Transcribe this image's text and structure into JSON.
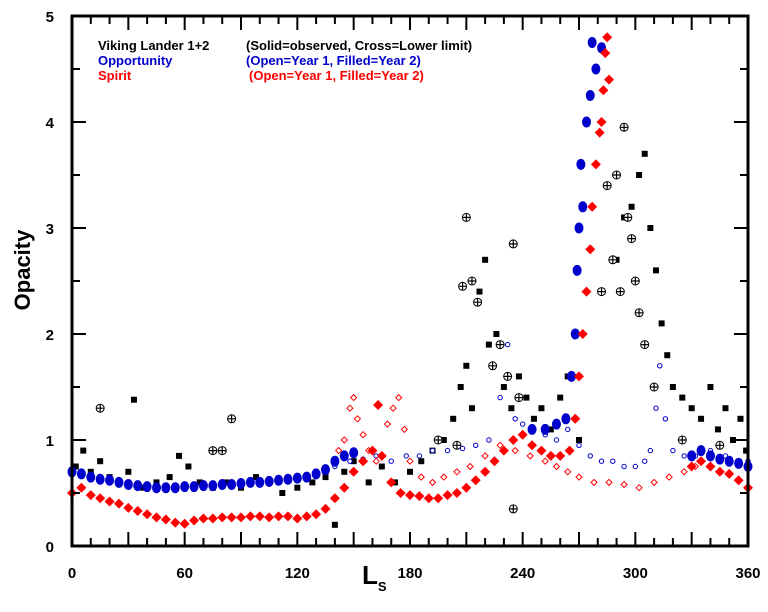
{
  "chart_data": {
    "type": "scatter",
    "xlabel": "L",
    "xlabel_sub": "S",
    "ylabel": "Opacity",
    "xlim": [
      0,
      360
    ],
    "ylim": [
      0,
      5
    ],
    "xticks": [
      0,
      60,
      120,
      180,
      240,
      300,
      360
    ],
    "yticks": [
      0,
      1,
      2,
      3,
      4,
      5
    ],
    "grid": false,
    "legend_placement": "top-left",
    "legend": [
      {
        "name": "Viking Lander 1+2",
        "note": "(Solid=observed, Cross=Lower limit)",
        "color": "#000000"
      },
      {
        "name": "Opportunity",
        "note": "(Open=Year 1, Filled=Year 2)",
        "color": "#0000cc"
      },
      {
        "name": "Spirit",
        "note": "(Open=Year 1, Filled=Year 2)",
        "color": "#ff0000"
      }
    ],
    "series": [
      {
        "id": "viking_observed",
        "marker": "square-filled",
        "color": "#000000",
        "points": [
          [
            2,
            0.75
          ],
          [
            6,
            0.9
          ],
          [
            10,
            0.7
          ],
          [
            15,
            0.8
          ],
          [
            20,
            0.65
          ],
          [
            25,
            0.6
          ],
          [
            30,
            0.7
          ],
          [
            33,
            1.38
          ],
          [
            38,
            0.55
          ],
          [
            45,
            0.6
          ],
          [
            52,
            0.65
          ],
          [
            57,
            0.85
          ],
          [
            62,
            0.75
          ],
          [
            68,
            0.6
          ],
          [
            75,
            0.55
          ],
          [
            82,
            0.6
          ],
          [
            90,
            0.55
          ],
          [
            98,
            0.65
          ],
          [
            105,
            0.6
          ],
          [
            112,
            0.5
          ],
          [
            120,
            0.55
          ],
          [
            128,
            0.6
          ],
          [
            135,
            0.65
          ],
          [
            140,
            0.2
          ],
          [
            145,
            0.7
          ],
          [
            150,
            0.8
          ],
          [
            158,
            0.6
          ],
          [
            165,
            0.75
          ],
          [
            172,
            0.6
          ],
          [
            180,
            0.7
          ],
          [
            186,
            0.8
          ],
          [
            192,
            0.9
          ],
          [
            198,
            1.0
          ],
          [
            203,
            1.2
          ],
          [
            207,
            1.5
          ],
          [
            210,
            1.7
          ],
          [
            213,
            1.3
          ],
          [
            217,
            2.4
          ],
          [
            220,
            2.7
          ],
          [
            222,
            1.9
          ],
          [
            226,
            2.0
          ],
          [
            230,
            1.5
          ],
          [
            234,
            1.3
          ],
          [
            238,
            1.6
          ],
          [
            242,
            1.4
          ],
          [
            246,
            1.2
          ],
          [
            250,
            1.3
          ],
          [
            255,
            1.1
          ],
          [
            260,
            1.4
          ],
          [
            264,
            1.6
          ],
          [
            270,
            1.0
          ],
          [
            290,
            2.7
          ],
          [
            294,
            3.1
          ],
          [
            298,
            3.2
          ],
          [
            302,
            3.5
          ],
          [
            305,
            3.7
          ],
          [
            308,
            3.0
          ],
          [
            311,
            2.6
          ],
          [
            314,
            2.1
          ],
          [
            317,
            1.8
          ],
          [
            320,
            1.5
          ],
          [
            325,
            1.4
          ],
          [
            330,
            1.3
          ],
          [
            335,
            1.2
          ],
          [
            340,
            1.5
          ],
          [
            344,
            1.1
          ],
          [
            348,
            1.3
          ],
          [
            352,
            1.0
          ],
          [
            356,
            1.2
          ],
          [
            359,
            0.9
          ]
        ]
      },
      {
        "id": "viking_lower_limit",
        "marker": "cross-open",
        "color": "#000000",
        "points": [
          [
            15,
            1.3
          ],
          [
            75,
            0.9
          ],
          [
            80,
            0.9
          ],
          [
            85,
            1.2
          ],
          [
            195,
            1.0
          ],
          [
            205,
            0.95
          ],
          [
            208,
            2.45
          ],
          [
            210,
            3.1
          ],
          [
            213,
            2.5
          ],
          [
            216,
            2.3
          ],
          [
            224,
            1.7
          ],
          [
            228,
            1.9
          ],
          [
            232,
            1.6
          ],
          [
            235,
            2.85
          ],
          [
            238,
            1.4
          ],
          [
            235,
            0.35
          ],
          [
            282,
            2.4
          ],
          [
            285,
            3.4
          ],
          [
            288,
            2.7
          ],
          [
            290,
            3.5
          ],
          [
            292,
            2.4
          ],
          [
            294,
            3.95
          ],
          [
            296,
            3.1
          ],
          [
            298,
            2.9
          ],
          [
            300,
            2.5
          ],
          [
            302,
            2.2
          ],
          [
            305,
            1.9
          ],
          [
            310,
            1.5
          ],
          [
            325,
            1.0
          ],
          [
            345,
            0.95
          ]
        ]
      },
      {
        "id": "opportunity_year1",
        "marker": "circle-open",
        "color": "#0000cc",
        "points": [
          [
            140,
            0.75
          ],
          [
            148,
            0.8
          ],
          [
            155,
            0.82
          ],
          [
            162,
            0.85
          ],
          [
            170,
            0.8
          ],
          [
            178,
            0.85
          ],
          [
            185,
            0.85
          ],
          [
            192,
            0.9
          ],
          [
            200,
            0.9
          ],
          [
            208,
            0.92
          ],
          [
            215,
            0.95
          ],
          [
            222,
            1.0
          ],
          [
            228,
            1.4
          ],
          [
            232,
            1.9
          ],
          [
            236,
            1.2
          ],
          [
            240,
            1.15
          ],
          [
            246,
            1.1
          ],
          [
            252,
            1.05
          ],
          [
            258,
            1.0
          ],
          [
            264,
            1.1
          ],
          [
            270,
            0.95
          ],
          [
            276,
            0.85
          ],
          [
            282,
            0.8
          ],
          [
            288,
            0.8
          ],
          [
            294,
            0.75
          ],
          [
            300,
            0.75
          ],
          [
            305,
            0.8
          ],
          [
            308,
            0.9
          ],
          [
            311,
            1.3
          ],
          [
            313,
            1.7
          ],
          [
            316,
            1.2
          ],
          [
            320,
            0.9
          ],
          [
            326,
            0.85
          ],
          [
            332,
            0.85
          ],
          [
            340,
            0.9
          ],
          [
            348,
            0.85
          ],
          [
            355,
            0.8
          ],
          [
            360,
            0.8
          ]
        ]
      },
      {
        "id": "opportunity_year2",
        "marker": "circle-filled",
        "color": "#0000cc",
        "points": [
          [
            0,
            0.7
          ],
          [
            5,
            0.68
          ],
          [
            10,
            0.65
          ],
          [
            15,
            0.63
          ],
          [
            20,
            0.62
          ],
          [
            25,
            0.6
          ],
          [
            30,
            0.58
          ],
          [
            35,
            0.57
          ],
          [
            40,
            0.56
          ],
          [
            45,
            0.55
          ],
          [
            50,
            0.55
          ],
          [
            55,
            0.55
          ],
          [
            60,
            0.56
          ],
          [
            65,
            0.56
          ],
          [
            70,
            0.57
          ],
          [
            75,
            0.57
          ],
          [
            80,
            0.58
          ],
          [
            85,
            0.58
          ],
          [
            90,
            0.59
          ],
          [
            95,
            0.6
          ],
          [
            100,
            0.6
          ],
          [
            105,
            0.61
          ],
          [
            110,
            0.62
          ],
          [
            115,
            0.63
          ],
          [
            120,
            0.64
          ],
          [
            125,
            0.65
          ],
          [
            130,
            0.68
          ],
          [
            135,
            0.72
          ],
          [
            140,
            0.8
          ],
          [
            145,
            0.85
          ],
          [
            150,
            0.88
          ],
          [
            245,
            1.1
          ],
          [
            252,
            1.1
          ],
          [
            258,
            1.15
          ],
          [
            263,
            1.2
          ],
          [
            266,
            1.6
          ],
          [
            268,
            2.0
          ],
          [
            269,
            2.6
          ],
          [
            270,
            3.0
          ],
          [
            271,
            3.6
          ],
          [
            272,
            3.2
          ],
          [
            274,
            4.0
          ],
          [
            276,
            4.25
          ],
          [
            277,
            4.75
          ],
          [
            279,
            4.5
          ],
          [
            282,
            4.7
          ],
          [
            330,
            0.85
          ],
          [
            335,
            0.9
          ],
          [
            340,
            0.85
          ],
          [
            345,
            0.82
          ],
          [
            350,
            0.8
          ],
          [
            355,
            0.78
          ],
          [
            360,
            0.75
          ]
        ]
      },
      {
        "id": "spirit_year1",
        "marker": "diamond-open",
        "color": "#ff0000",
        "points": [
          [
            142,
            0.9
          ],
          [
            145,
            1.0
          ],
          [
            148,
            1.3
          ],
          [
            150,
            1.4
          ],
          [
            152,
            1.2
          ],
          [
            155,
            1.05
          ],
          [
            158,
            0.9
          ],
          [
            162,
            0.8
          ],
          [
            168,
            1.15
          ],
          [
            171,
            1.3
          ],
          [
            174,
            1.4
          ],
          [
            177,
            1.1
          ],
          [
            180,
            0.8
          ],
          [
            186,
            0.65
          ],
          [
            192,
            0.6
          ],
          [
            198,
            0.65
          ],
          [
            205,
            0.7
          ],
          [
            212,
            0.75
          ],
          [
            220,
            0.85
          ],
          [
            228,
            0.95
          ],
          [
            236,
            0.9
          ],
          [
            244,
            0.85
          ],
          [
            252,
            0.8
          ],
          [
            258,
            0.75
          ],
          [
            264,
            0.7
          ],
          [
            270,
            0.65
          ],
          [
            278,
            0.6
          ],
          [
            286,
            0.6
          ],
          [
            294,
            0.58
          ],
          [
            302,
            0.55
          ],
          [
            310,
            0.6
          ],
          [
            318,
            0.65
          ],
          [
            326,
            0.7
          ],
          [
            332,
            0.75
          ]
        ]
      },
      {
        "id": "spirit_year2",
        "marker": "diamond-filled",
        "color": "#ff0000",
        "points": [
          [
            0,
            0.5
          ],
          [
            5,
            0.55
          ],
          [
            10,
            0.48
          ],
          [
            15,
            0.45
          ],
          [
            20,
            0.42
          ],
          [
            25,
            0.4
          ],
          [
            30,
            0.36
          ],
          [
            35,
            0.33
          ],
          [
            40,
            0.3
          ],
          [
            45,
            0.27
          ],
          [
            50,
            0.25
          ],
          [
            55,
            0.22
          ],
          [
            60,
            0.21
          ],
          [
            65,
            0.24
          ],
          [
            70,
            0.26
          ],
          [
            75,
            0.26
          ],
          [
            80,
            0.27
          ],
          [
            85,
            0.27
          ],
          [
            90,
            0.27
          ],
          [
            95,
            0.28
          ],
          [
            100,
            0.28
          ],
          [
            105,
            0.27
          ],
          [
            110,
            0.28
          ],
          [
            115,
            0.28
          ],
          [
            120,
            0.26
          ],
          [
            125,
            0.28
          ],
          [
            130,
            0.3
          ],
          [
            135,
            0.35
          ],
          [
            140,
            0.45
          ],
          [
            145,
            0.55
          ],
          [
            150,
            0.7
          ],
          [
            155,
            0.8
          ],
          [
            160,
            0.9
          ],
          [
            163,
            1.33
          ],
          [
            165,
            0.85
          ],
          [
            170,
            0.6
          ],
          [
            175,
            0.5
          ],
          [
            180,
            0.48
          ],
          [
            185,
            0.47
          ],
          [
            190,
            0.45
          ],
          [
            195,
            0.45
          ],
          [
            200,
            0.48
          ],
          [
            205,
            0.5
          ],
          [
            210,
            0.55
          ],
          [
            215,
            0.62
          ],
          [
            220,
            0.7
          ],
          [
            225,
            0.8
          ],
          [
            230,
            0.9
          ],
          [
            235,
            1.0
          ],
          [
            240,
            1.05
          ],
          [
            245,
            0.95
          ],
          [
            250,
            0.9
          ],
          [
            255,
            0.85
          ],
          [
            260,
            0.85
          ],
          [
            265,
            0.9
          ],
          [
            268,
            1.2
          ],
          [
            270,
            1.6
          ],
          [
            272,
            2.0
          ],
          [
            274,
            2.4
          ],
          [
            276,
            2.8
          ],
          [
            277,
            3.2
          ],
          [
            279,
            3.6
          ],
          [
            281,
            3.9
          ],
          [
            282,
            4.0
          ],
          [
            283,
            4.3
          ],
          [
            284,
            4.65
          ],
          [
            285,
            4.8
          ],
          [
            286,
            4.4
          ],
          [
            330,
            0.75
          ],
          [
            335,
            0.8
          ],
          [
            340,
            0.75
          ],
          [
            345,
            0.7
          ],
          [
            350,
            0.68
          ],
          [
            355,
            0.62
          ],
          [
            360,
            0.55
          ]
        ]
      }
    ]
  }
}
